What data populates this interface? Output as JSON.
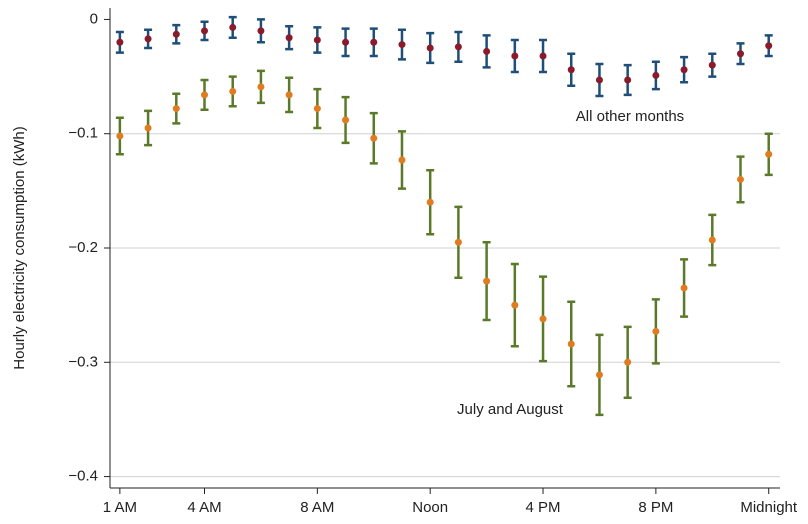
{
  "chart_data": {
    "type": "errorbar",
    "y_label": "Hourly electricity consumption (kWh)",
    "x": [
      1,
      2,
      3,
      4,
      5,
      6,
      7,
      8,
      9,
      10,
      11,
      12,
      13,
      14,
      15,
      16,
      17,
      18,
      19,
      20,
      21,
      22,
      23,
      24
    ],
    "xlim": [
      0.65,
      24.4
    ],
    "xticks": [
      {
        "value": 1,
        "label": "1 AM"
      },
      {
        "value": 4,
        "label": "4 AM"
      },
      {
        "value": 8,
        "label": "8 AM"
      },
      {
        "value": 12,
        "label": "Noon"
      },
      {
        "value": 16,
        "label": "4 PM"
      },
      {
        "value": 20,
        "label": "8 PM"
      },
      {
        "value": 24,
        "label": "Midnight"
      }
    ],
    "ylim": [
      -0.41,
      0.01
    ],
    "yticks": [
      0,
      {
        "value": -0.1,
        "label": "−0.1"
      },
      {
        "value": -0.2,
        "label": "−0.2"
      },
      {
        "value": -0.3,
        "label": "−0.3"
      },
      {
        "value": -0.4,
        "label": "−0.4"
      }
    ],
    "grid": true,
    "series": [
      {
        "name": "All other months",
        "color": "#8b1a2b",
        "bar_color": "#1f4e79",
        "values": [
          -0.02,
          -0.017,
          -0.013,
          -0.01,
          -0.007,
          -0.01,
          -0.016,
          -0.018,
          -0.02,
          -0.02,
          -0.022,
          -0.025,
          -0.024,
          -0.028,
          -0.032,
          -0.032,
          -0.044,
          -0.053,
          -0.053,
          -0.049,
          -0.044,
          -0.04,
          -0.03,
          -0.023
        ],
        "errors": [
          0.009,
          0.008,
          0.008,
          0.008,
          0.009,
          0.01,
          0.01,
          0.011,
          0.012,
          0.012,
          0.013,
          0.013,
          0.013,
          0.014,
          0.014,
          0.014,
          0.014,
          0.014,
          0.013,
          0.012,
          0.011,
          0.01,
          0.009,
          0.009
        ]
      },
      {
        "name": "July and August",
        "color": "#e07b20",
        "bar_color": "#5a7a2a",
        "values": [
          -0.102,
          -0.095,
          -0.078,
          -0.066,
          -0.063,
          -0.059,
          -0.066,
          -0.078,
          -0.088,
          -0.104,
          -0.123,
          -0.16,
          -0.195,
          -0.229,
          -0.25,
          -0.262,
          -0.284,
          -0.311,
          -0.3,
          -0.273,
          -0.235,
          -0.193,
          -0.14,
          -0.118
        ],
        "errors": [
          0.016,
          0.015,
          0.013,
          0.013,
          0.013,
          0.014,
          0.015,
          0.017,
          0.02,
          0.022,
          0.025,
          0.028,
          0.031,
          0.034,
          0.036,
          0.037,
          0.037,
          0.035,
          0.031,
          0.028,
          0.025,
          0.022,
          0.02,
          0.018
        ]
      }
    ]
  }
}
